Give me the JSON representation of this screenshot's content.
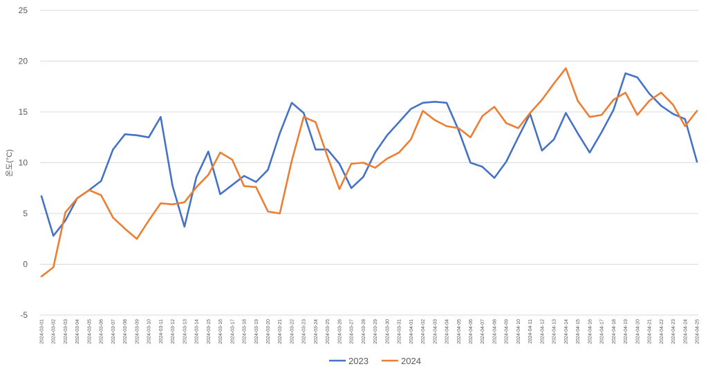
{
  "chart_data": {
    "type": "line",
    "title": "",
    "xlabel": "",
    "ylabel": "온도(°C)",
    "ylim": [
      -5,
      25
    ],
    "yticks": [
      -5,
      0,
      5,
      10,
      15,
      20,
      25
    ],
    "grid": true,
    "legend_position": "bottom",
    "categories": [
      "2024-03-01",
      "2024-03-02",
      "2024-03-03",
      "2024-03-04",
      "2024-03-05",
      "2024-03-06",
      "2024-03-07",
      "2024-03-08",
      "2024-03-09",
      "2024-03-10",
      "2024-03-11",
      "2024-03-12",
      "2024-03-13",
      "2024-03-14",
      "2024-03-15",
      "2024-03-16",
      "2024-03-17",
      "2024-03-18",
      "2024-03-19",
      "2024-03-20",
      "2024-03-21",
      "2024-03-22",
      "2024-03-23",
      "2024-03-24",
      "2024-03-25",
      "2024-03-26",
      "2024-03-27",
      "2024-03-28",
      "2024-03-29",
      "2024-03-30",
      "2024-03-31",
      "2024-04-01",
      "2024-04-02",
      "2024-04-03",
      "2024-04-04",
      "2024-04-05",
      "2024-04-06",
      "2024-04-07",
      "2024-04-08",
      "2024-04-09",
      "2024-04-10",
      "2024-04-11",
      "2024-04-12",
      "2024-04-13",
      "2024-04-14",
      "2024-04-15",
      "2024-04-16",
      "2024-04-17",
      "2024-04-18",
      "2024-04-19",
      "2024-04-20",
      "2024-04-21",
      "2024-04-22",
      "2024-04-23",
      "2024-04-24",
      "2024-04-25"
    ],
    "series": [
      {
        "name": "2023",
        "color": "#4472c4",
        "values": [
          6.7,
          2.8,
          4.3,
          6.5,
          7.3,
          8.2,
          11.3,
          12.8,
          12.7,
          12.5,
          14.5,
          7.7,
          3.7,
          8.6,
          11.1,
          6.9,
          7.8,
          8.7,
          8.1,
          9.3,
          12.9,
          15.9,
          14.9,
          11.3,
          11.3,
          9.9,
          7.5,
          8.6,
          11.0,
          12.7,
          14.0,
          15.3,
          15.9,
          16.0,
          15.9,
          13.2,
          10.0,
          9.6,
          8.5,
          10.1,
          12.5,
          14.8,
          11.2,
          12.3,
          14.9,
          12.9,
          11.0,
          13.0,
          15.2,
          18.8,
          18.4,
          16.8,
          15.6,
          14.8,
          14.3,
          10.1
        ]
      },
      {
        "name": "2024",
        "color": "#ed7d31",
        "values": [
          -1.2,
          -0.3,
          5.1,
          6.5,
          7.3,
          6.8,
          4.6,
          3.5,
          2.5,
          4.3,
          6.0,
          5.9,
          6.1,
          7.6,
          8.8,
          11.0,
          10.3,
          7.7,
          7.6,
          5.2,
          5.0,
          10.2,
          14.5,
          14.0,
          10.6,
          7.4,
          9.9,
          10.0,
          9.5,
          10.4,
          11.0,
          12.3,
          15.1,
          14.2,
          13.6,
          13.4,
          12.5,
          14.6,
          15.5,
          13.9,
          13.4,
          14.9,
          16.2,
          17.8,
          19.3,
          16.1,
          14.5,
          14.7,
          16.2,
          16.9,
          14.7,
          16.1,
          16.9,
          15.7,
          13.6,
          15.1
        ]
      }
    ]
  }
}
